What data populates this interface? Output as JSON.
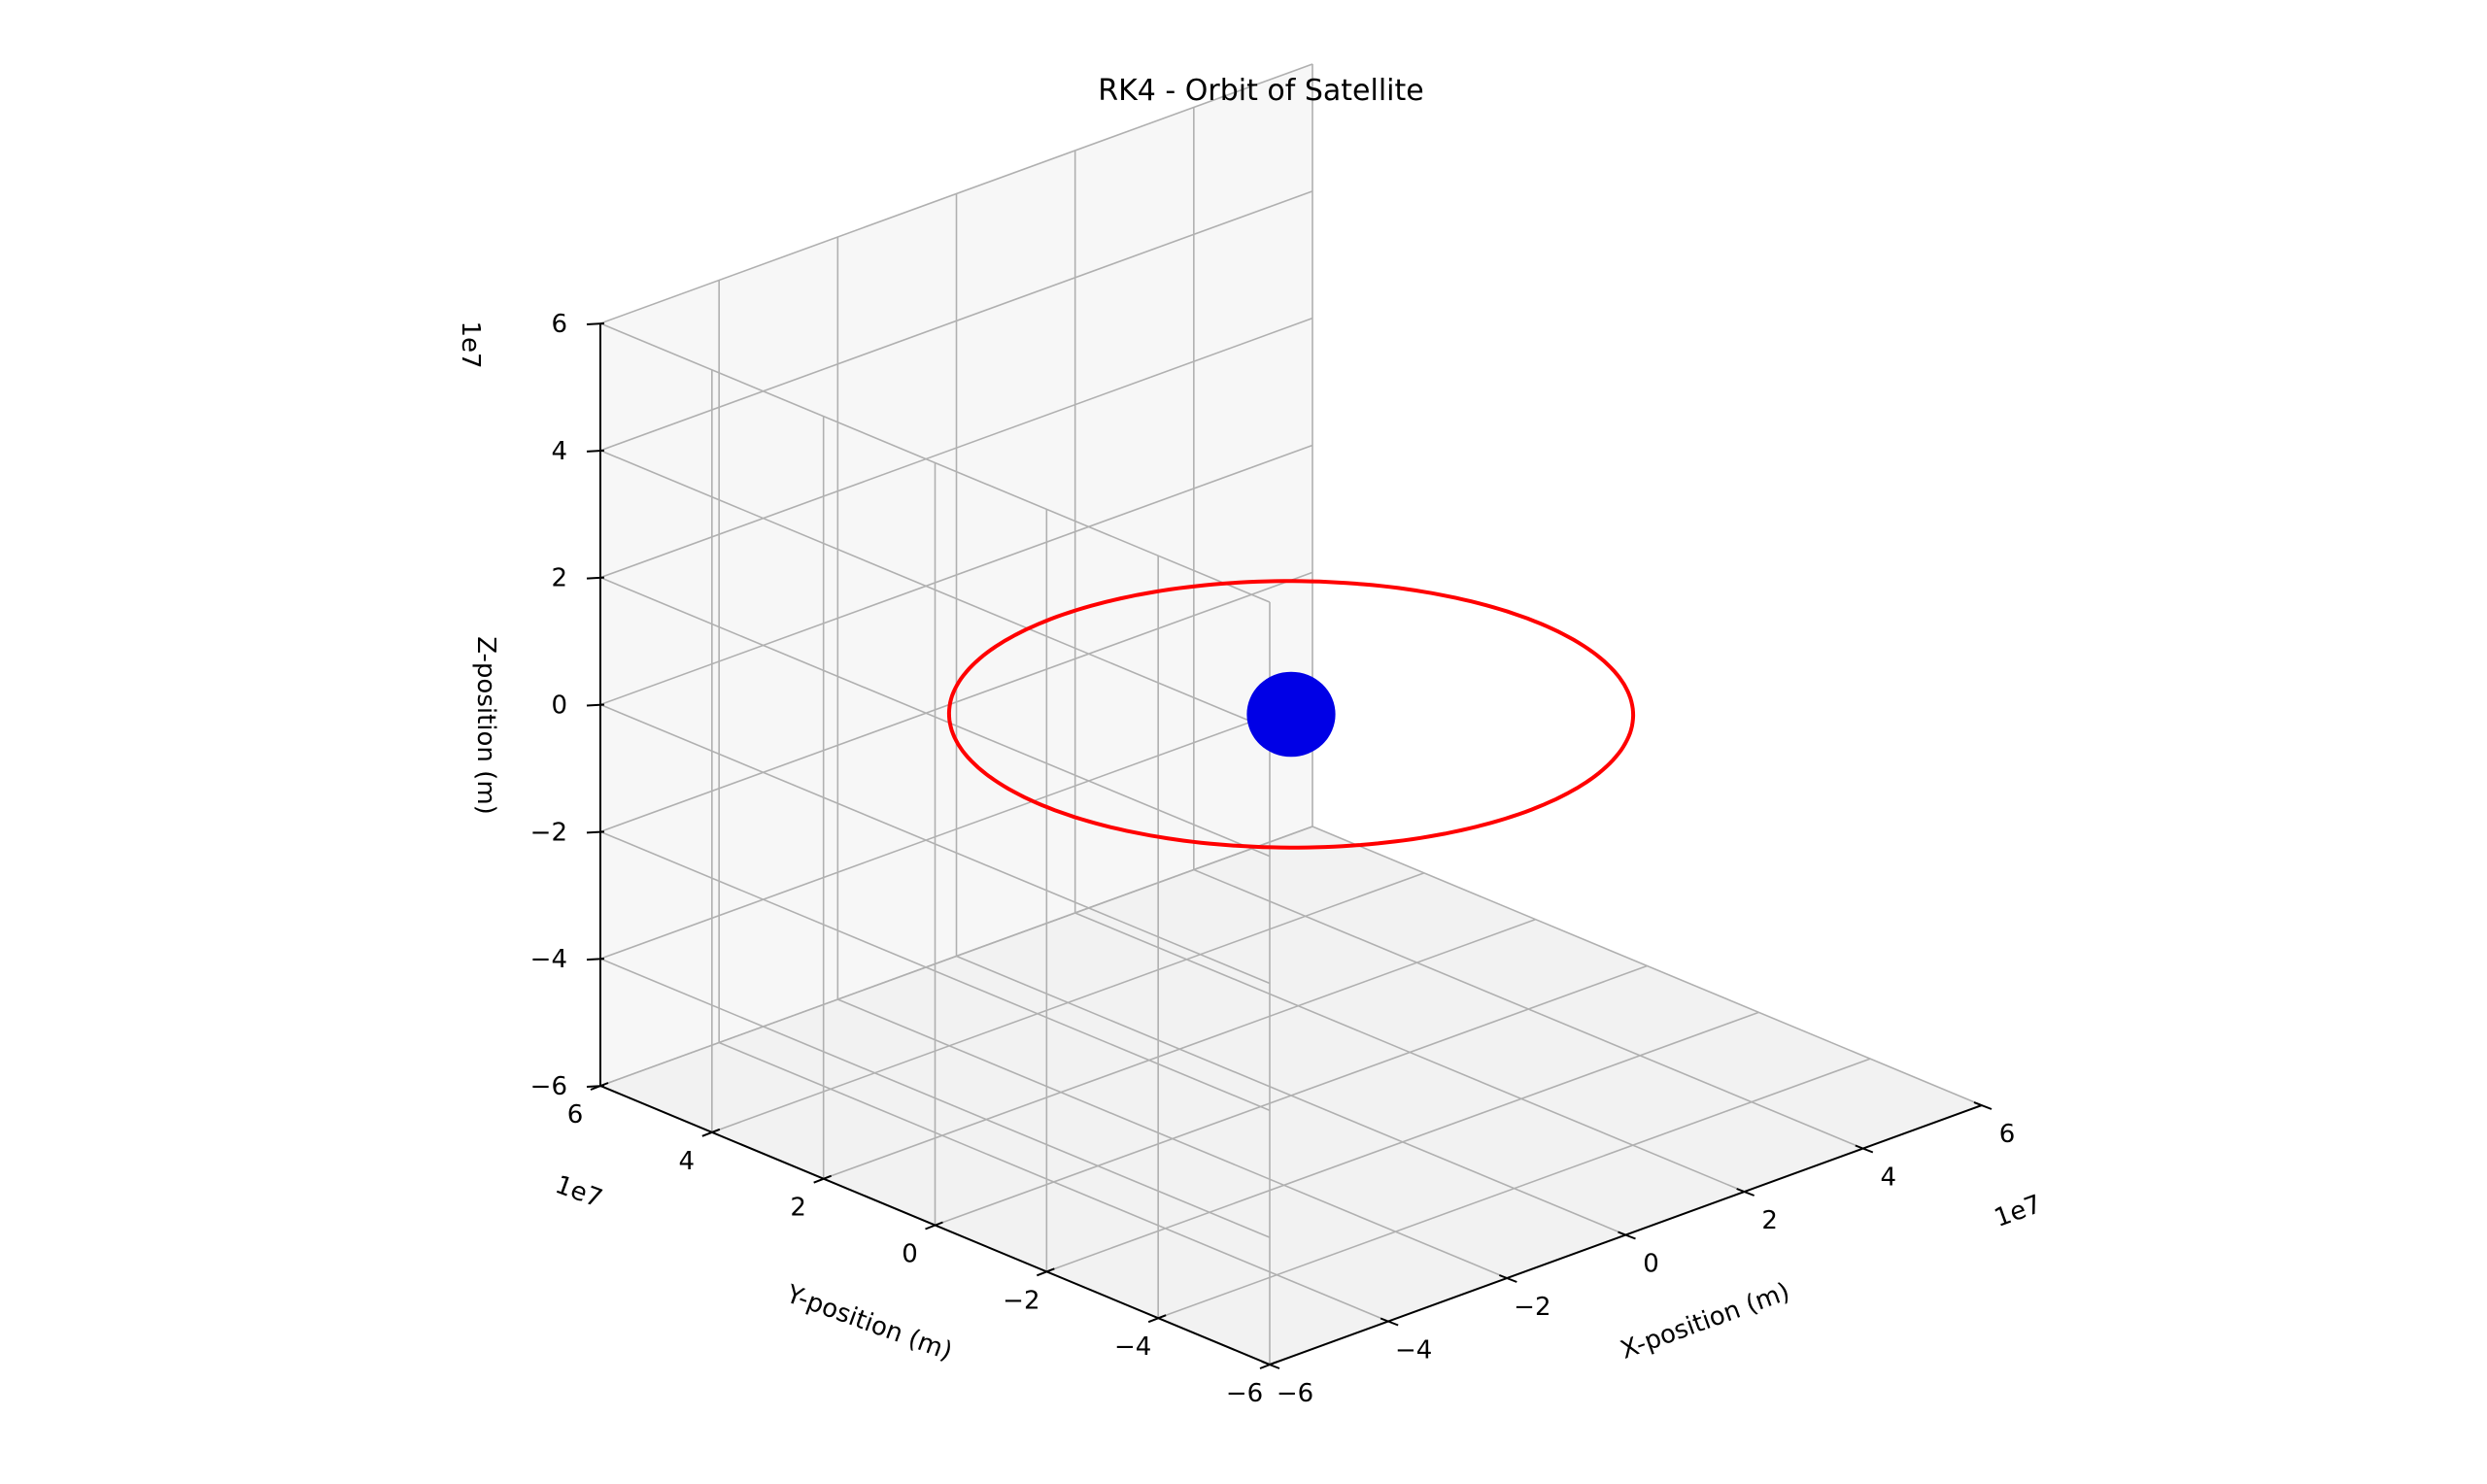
{
  "chart_data": {
    "type": "line3d",
    "title": "RK4 - Orbit of Satellite",
    "xlabel": "X-position (m)",
    "ylabel": "Y-position (m)",
    "zlabel": "Z-position (m)",
    "x_offset_label": "1e7",
    "y_offset_label": "1e7",
    "z_offset_label": "1e7",
    "xlim": [
      -6,
      6
    ],
    "ylim": [
      -6,
      6
    ],
    "zlim": [
      -6,
      6
    ],
    "ticks": [
      -6,
      -4,
      -2,
      0,
      2,
      4,
      6
    ],
    "tick_labels": [
      "−6",
      "−4",
      "−2",
      "0",
      "2",
      "4",
      "6"
    ],
    "view": {
      "elevation_deg": 15,
      "azimuth_deg": -135
    },
    "grid": true,
    "series": [
      {
        "kind": "orbit",
        "color": "#ff0000",
        "shape": "circle",
        "center": [
          0,
          0,
          0
        ],
        "radius": 4.2,
        "plane": "xy"
      },
      {
        "kind": "sphere",
        "color": "#0000e6",
        "center": [
          0,
          0,
          0
        ],
        "radius": 0.637
      }
    ]
  }
}
